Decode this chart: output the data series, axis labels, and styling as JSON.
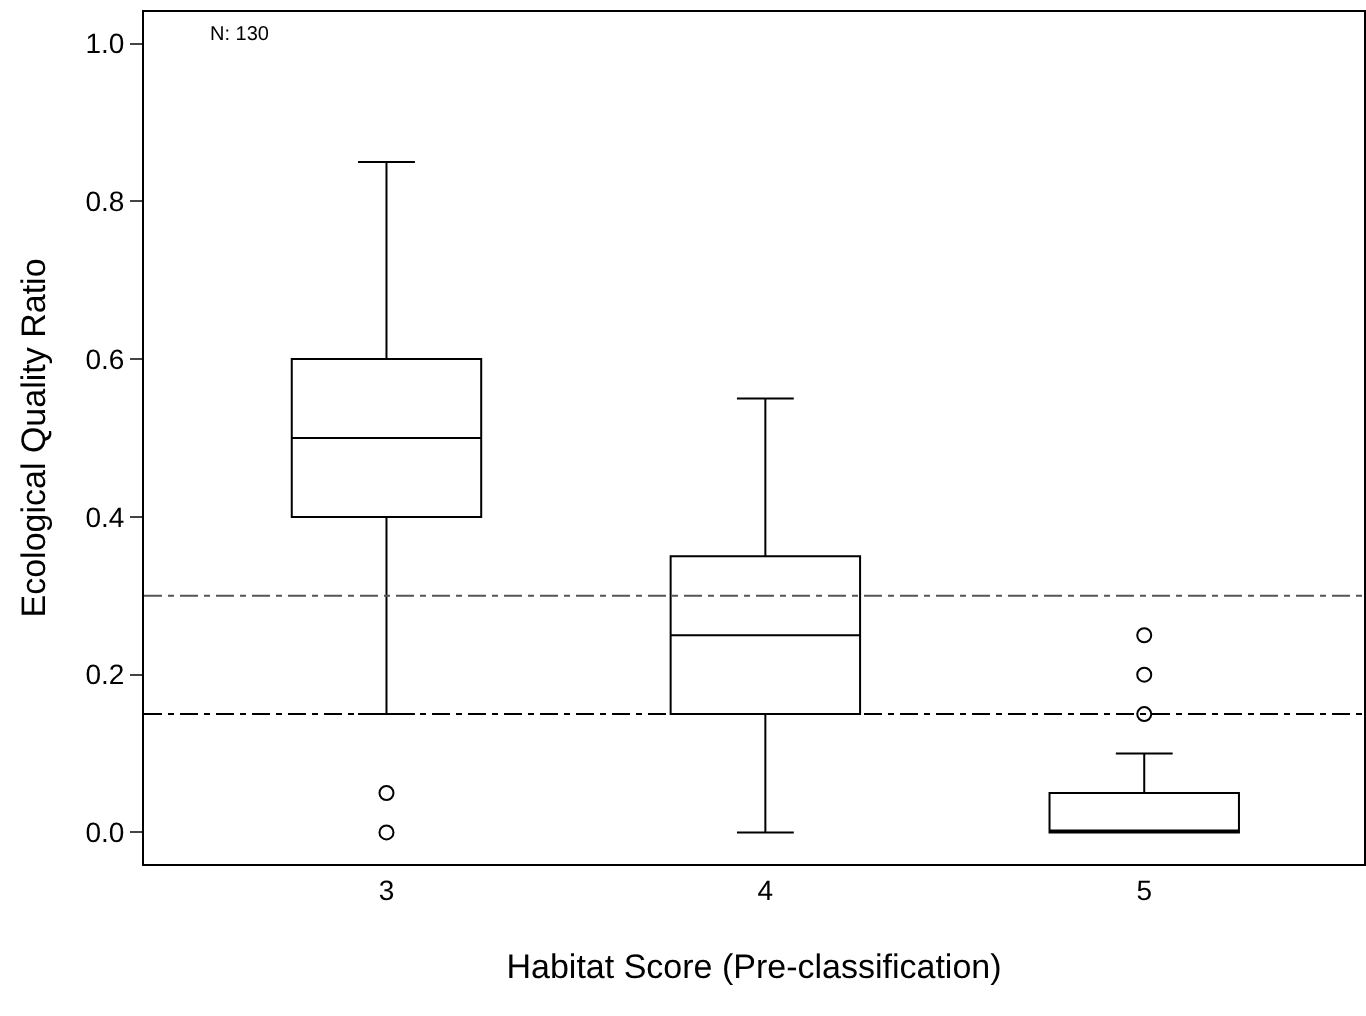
{
  "chart_data": {
    "type": "box",
    "xlabel": "Habitat Score (Pre-classification)",
    "ylabel": "Ecological Quality Ratio",
    "categories": [
      "3",
      "4",
      "5"
    ],
    "boxes": [
      {
        "low": 0.15,
        "q1": 0.4,
        "median": 0.5,
        "q3": 0.6,
        "high": 0.85,
        "outliers": [
          0.05,
          0.0
        ]
      },
      {
        "low": 0.0,
        "q1": 0.15,
        "median": 0.25,
        "q3": 0.35,
        "high": 0.55
      },
      {
        "low": 0.0,
        "q1": 0.0,
        "median": 0.0,
        "q3": 0.05,
        "high": 0.1,
        "outliers": [
          0.15,
          0.2,
          0.25
        ]
      }
    ],
    "color": "#000000",
    "ylim": [
      -0.04,
      1.04
    ],
    "yticks": [
      {
        "value": 0,
        "label": "0.0"
      },
      0.2,
      0.4,
      0.6,
      0.8,
      {
        "value": 1,
        "label": "1.0"
      }
    ],
    "ref_lines": [
      {
        "axis": "y",
        "value": 0.3,
        "line_style": "dashdot",
        "color": "#555555"
      },
      {
        "axis": "y",
        "value": 0.15,
        "line_style": "dashdot",
        "color": "#000000"
      }
    ],
    "annotations": [
      "N: 130"
    ],
    "marker": "circle"
  }
}
